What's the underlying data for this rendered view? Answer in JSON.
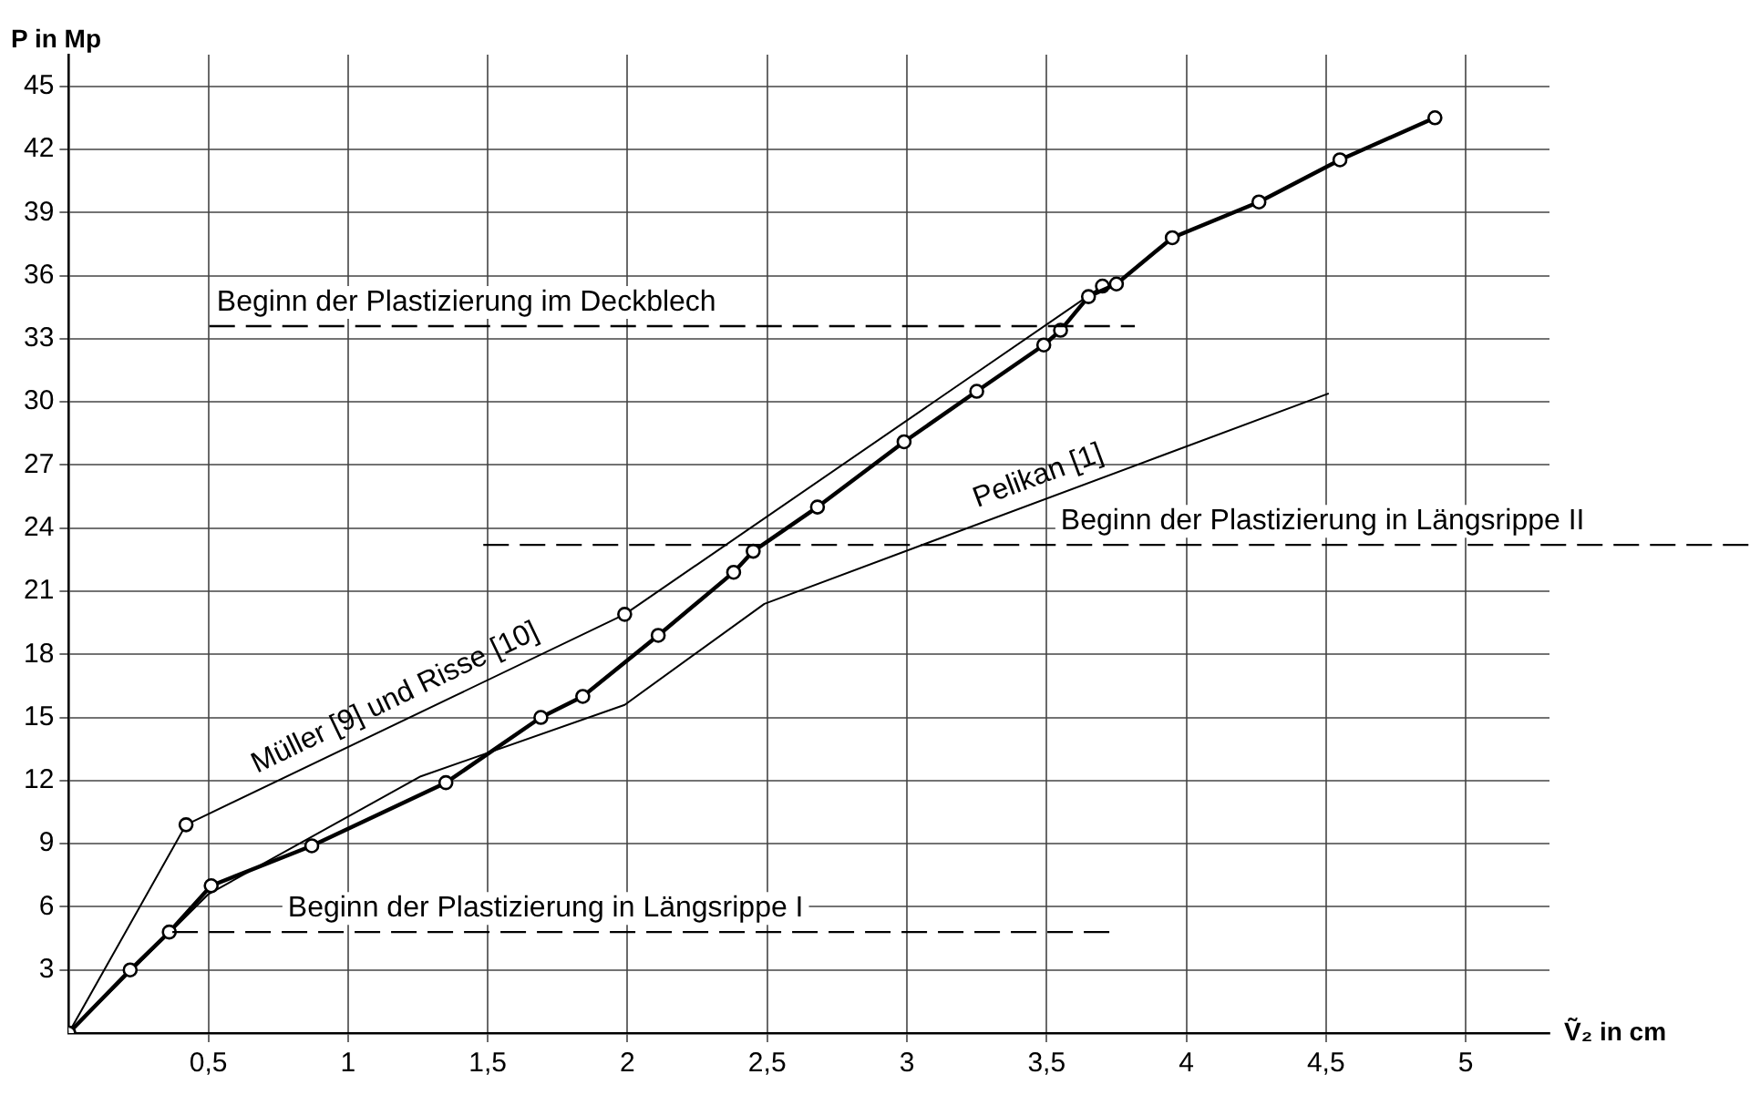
{
  "chart_data": {
    "type": "line",
    "xlabel": "Ṽ₂ in cm",
    "ylabel": "P in Mp",
    "xlim": [
      0,
      5.3
    ],
    "ylim": [
      0,
      46.5
    ],
    "xticks": [
      {
        "value": 0.5,
        "label": "0,5"
      },
      1,
      {
        "value": 1.5,
        "label": "1,5"
      },
      2,
      {
        "value": 2.5,
        "label": "2,5"
      },
      3,
      {
        "value": 3.5,
        "label": "3,5"
      },
      4,
      {
        "value": 4.5,
        "label": "4,5"
      },
      5
    ],
    "yticks": [
      3,
      6,
      9,
      12,
      15,
      18,
      21,
      24,
      27,
      30,
      33,
      36,
      39,
      42,
      45
    ],
    "grid": true,
    "legend": false,
    "series": [
      {
        "color": "#000000",
        "marker": "circle",
        "x": [
          0,
          0.22,
          0.36,
          0.51,
          0.87,
          1.35,
          1.69,
          1.84,
          2.11,
          2.38,
          2.45,
          2.68,
          2.99,
          3.25,
          3.49,
          3.55,
          3.65,
          3.75,
          3.95,
          4.26,
          4.55,
          4.89
        ],
        "values": [
          0,
          3,
          4.8,
          7,
          8.9,
          11.9,
          15,
          16,
          18.9,
          21.9,
          22.9,
          25,
          28.1,
          30.5,
          32.7,
          33.4,
          35,
          35.6,
          37.8,
          39.5,
          41.5,
          43.5
        ]
      },
      {
        "name": "Müller [9] und Risse [10]",
        "color": "#000000",
        "marker": "circle",
        "x": [
          0,
          0.42,
          1.99,
          3.7
        ],
        "values": [
          0,
          9.9,
          19.9,
          35.5
        ]
      },
      {
        "name": "Pelikan [1]",
        "color": "#000000",
        "marker": "none",
        "x": [
          0,
          0.5,
          1.26,
          1.99,
          2.49,
          4.51
        ],
        "values": [
          0,
          6.6,
          12.2,
          15.6,
          20.4,
          30.4
        ]
      }
    ],
    "ref_lines": [
      {
        "axis": "y",
        "value": 33.6,
        "label": "Beginn der Plastizierung im Deckblech",
        "line_style": "dashed"
      },
      {
        "axis": "y",
        "value": 23.2,
        "label": "Beginn der Plastizierung in Längsrippe II",
        "line_style": "dashed"
      },
      {
        "axis": "y",
        "value": 4.8,
        "label": "Beginn der Plastizierung in Längsrippe I",
        "line_style": "dashed"
      }
    ]
  }
}
